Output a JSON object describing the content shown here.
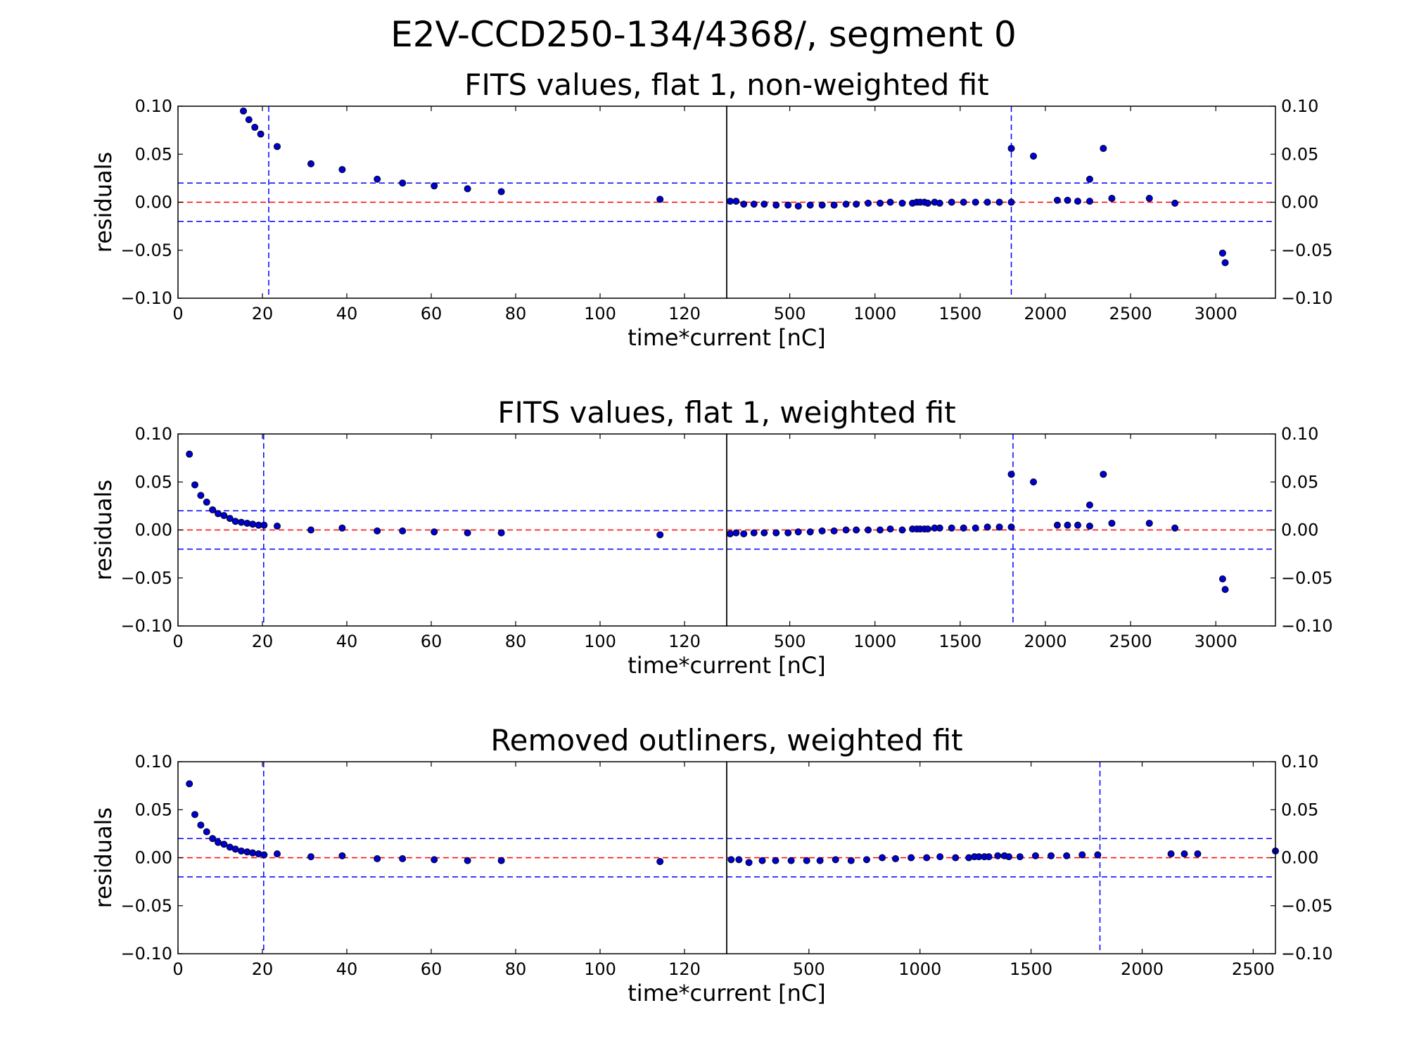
{
  "figure": {
    "suptitle": "E2V-CCD250-134/4368/, segment 0"
  },
  "chart_data": [
    {
      "type": "scatter",
      "title": "FITS values, flat 1, non-weighted fit",
      "xlabel": "time*current [nC]",
      "ylabel": "residuals",
      "ylim": [
        -0.1,
        0.1
      ],
      "yticks": [
        -0.1,
        -0.05,
        0.0,
        0.05,
        0.1
      ],
      "ytick_labels": [
        "−0.10",
        "−0.05",
        "0.00",
        "0.05",
        "0.10"
      ],
      "left_panel": {
        "xlim": [
          0,
          130
        ],
        "xticks": [
          0,
          20,
          40,
          60,
          80,
          100,
          120
        ],
        "xtick_labels": [
          "0",
          "20",
          "40",
          "60",
          "80",
          "100",
          "120"
        ],
        "vline": 21.5,
        "points": [
          [
            15.5,
            0.095
          ],
          [
            16.8,
            0.086
          ],
          [
            18.2,
            0.078
          ],
          [
            19.6,
            0.071
          ],
          [
            23.5,
            0.058
          ],
          [
            31.5,
            0.04
          ],
          [
            38.9,
            0.034
          ],
          [
            47.2,
            0.024
          ],
          [
            53.2,
            0.02
          ],
          [
            60.7,
            0.017
          ],
          [
            68.6,
            0.014
          ],
          [
            76.6,
            0.011
          ],
          [
            114.2,
            0.003
          ]
        ]
      },
      "right_panel": {
        "xlim": [
          130,
          3350
        ],
        "xticks": [
          500,
          1000,
          1500,
          2000,
          2500,
          3000
        ],
        "xtick_labels": [
          "500",
          "1000",
          "1500",
          "2000",
          "2500",
          "3000"
        ],
        "vline": 1800,
        "points": [
          [
            150,
            0.001
          ],
          [
            185,
            0.001
          ],
          [
            230,
            -0.002
          ],
          [
            290,
            -0.002
          ],
          [
            350,
            -0.002
          ],
          [
            420,
            -0.003
          ],
          [
            490,
            -0.003
          ],
          [
            550,
            -0.004
          ],
          [
            620,
            -0.003
          ],
          [
            690,
            -0.003
          ],
          [
            760,
            -0.003
          ],
          [
            830,
            -0.002
          ],
          [
            890,
            -0.002
          ],
          [
            960,
            -0.001
          ],
          [
            1030,
            -0.001
          ],
          [
            1090,
            0.0
          ],
          [
            1160,
            -0.001
          ],
          [
            1220,
            -0.001
          ],
          [
            1245,
            0.0
          ],
          [
            1265,
            0.0
          ],
          [
            1290,
            0.0
          ],
          [
            1310,
            -0.001
          ],
          [
            1350,
            0.0
          ],
          [
            1380,
            -0.001
          ],
          [
            1450,
            0.0
          ],
          [
            1520,
            0.0
          ],
          [
            1590,
            0.0
          ],
          [
            1660,
            0.0
          ],
          [
            1730,
            0.0
          ],
          [
            1800,
            0.0
          ],
          [
            1800,
            0.056
          ],
          [
            1930,
            0.048
          ],
          [
            2070,
            0.002
          ],
          [
            2130,
            0.002
          ],
          [
            2190,
            0.001
          ],
          [
            2260,
            0.001
          ],
          [
            2260,
            0.024
          ],
          [
            2340,
            0.056
          ],
          [
            2390,
            0.004
          ],
          [
            2610,
            0.004
          ],
          [
            2760,
            -0.001
          ],
          [
            3040,
            -0.053
          ],
          [
            3055,
            -0.063
          ]
        ]
      }
    },
    {
      "type": "scatter",
      "title": "FITS values, flat 1, weighted fit",
      "xlabel": "time*current [nC]",
      "ylabel": "residuals",
      "ylim": [
        -0.1,
        0.1
      ],
      "yticks": [
        -0.1,
        -0.05,
        0.0,
        0.05,
        0.1
      ],
      "ytick_labels": [
        "−0.10",
        "−0.05",
        "0.00",
        "0.05",
        "0.10"
      ],
      "left_panel": {
        "xlim": [
          0,
          130
        ],
        "xticks": [
          0,
          20,
          40,
          60,
          80,
          100,
          120
        ],
        "xtick_labels": [
          "0",
          "20",
          "40",
          "60",
          "80",
          "100",
          "120"
        ],
        "vline": 20.3,
        "points": [
          [
            2.7,
            0.079
          ],
          [
            4.0,
            0.047
          ],
          [
            5.4,
            0.036
          ],
          [
            6.8,
            0.029
          ],
          [
            8.2,
            0.021
          ],
          [
            9.5,
            0.017
          ],
          [
            10.9,
            0.015
          ],
          [
            12.3,
            0.012
          ],
          [
            13.6,
            0.009
          ],
          [
            15.0,
            0.008
          ],
          [
            16.4,
            0.007
          ],
          [
            17.7,
            0.006
          ],
          [
            19.1,
            0.005
          ],
          [
            20.4,
            0.005
          ],
          [
            23.5,
            0.004
          ],
          [
            31.5,
            0.0
          ],
          [
            38.9,
            0.002
          ],
          [
            47.2,
            -0.001
          ],
          [
            53.2,
            -0.001
          ],
          [
            60.7,
            -0.002
          ],
          [
            68.6,
            -0.003
          ],
          [
            76.6,
            -0.003
          ],
          [
            114.2,
            -0.005
          ]
        ]
      },
      "right_panel": {
        "xlim": [
          130,
          3350
        ],
        "xticks": [
          500,
          1000,
          1500,
          2000,
          2500,
          3000
        ],
        "xtick_labels": [
          "500",
          "1000",
          "1500",
          "2000",
          "2500",
          "3000"
        ],
        "vline": 1810,
        "points": [
          [
            150,
            -0.004
          ],
          [
            185,
            -0.003
          ],
          [
            230,
            -0.004
          ],
          [
            290,
            -0.003
          ],
          [
            350,
            -0.003
          ],
          [
            420,
            -0.003
          ],
          [
            490,
            -0.003
          ],
          [
            550,
            -0.002
          ],
          [
            620,
            -0.002
          ],
          [
            690,
            -0.001
          ],
          [
            760,
            -0.001
          ],
          [
            830,
            0.0
          ],
          [
            890,
            0.0
          ],
          [
            960,
            0.0
          ],
          [
            1030,
            0.0
          ],
          [
            1090,
            0.001
          ],
          [
            1160,
            0.0
          ],
          [
            1220,
            0.001
          ],
          [
            1245,
            0.001
          ],
          [
            1265,
            0.001
          ],
          [
            1290,
            0.001
          ],
          [
            1310,
            0.001
          ],
          [
            1350,
            0.002
          ],
          [
            1380,
            0.002
          ],
          [
            1450,
            0.002
          ],
          [
            1520,
            0.002
          ],
          [
            1590,
            0.002
          ],
          [
            1660,
            0.003
          ],
          [
            1730,
            0.003
          ],
          [
            1800,
            0.003
          ],
          [
            1800,
            0.058
          ],
          [
            1930,
            0.05
          ],
          [
            2070,
            0.005
          ],
          [
            2130,
            0.005
          ],
          [
            2190,
            0.005
          ],
          [
            2260,
            0.004
          ],
          [
            2260,
            0.026
          ],
          [
            2340,
            0.058
          ],
          [
            2390,
            0.007
          ],
          [
            2610,
            0.007
          ],
          [
            2760,
            0.002
          ],
          [
            3040,
            -0.051
          ],
          [
            3055,
            -0.062
          ]
        ]
      }
    },
    {
      "type": "scatter",
      "title": "Removed outliners, weighted fit",
      "xlabel": "time*current [nC]",
      "ylabel": "residuals",
      "ylim": [
        -0.1,
        0.1
      ],
      "yticks": [
        -0.1,
        -0.05,
        0.0,
        0.05,
        0.1
      ],
      "ytick_labels": [
        "−0.10",
        "−0.05",
        "0.00",
        "0.05",
        "0.10"
      ],
      "left_panel": {
        "xlim": [
          0,
          130
        ],
        "xticks": [
          0,
          20,
          40,
          60,
          80,
          100,
          120
        ],
        "xtick_labels": [
          "0",
          "20",
          "40",
          "60",
          "80",
          "100",
          "120"
        ],
        "vline": 20.3,
        "points": [
          [
            2.7,
            0.077
          ],
          [
            4.0,
            0.045
          ],
          [
            5.4,
            0.034
          ],
          [
            6.8,
            0.027
          ],
          [
            8.2,
            0.02
          ],
          [
            9.5,
            0.016
          ],
          [
            10.9,
            0.014
          ],
          [
            12.3,
            0.011
          ],
          [
            13.6,
            0.009
          ],
          [
            15.0,
            0.007
          ],
          [
            16.4,
            0.006
          ],
          [
            17.7,
            0.005
          ],
          [
            19.1,
            0.004
          ],
          [
            20.4,
            0.003
          ],
          [
            23.5,
            0.004
          ],
          [
            31.5,
            0.001
          ],
          [
            38.9,
            0.002
          ],
          [
            47.2,
            -0.001
          ],
          [
            53.2,
            -0.001
          ],
          [
            60.7,
            -0.002
          ],
          [
            68.6,
            -0.003
          ],
          [
            76.6,
            -0.003
          ],
          [
            114.2,
            -0.004
          ]
        ]
      },
      "right_panel": {
        "xlim": [
          130,
          2600
        ],
        "xticks": [
          500,
          1000,
          1500,
          2000,
          2500
        ],
        "xtick_labels": [
          "500",
          "1000",
          "1500",
          "2000",
          "2500"
        ],
        "vline": 1810,
        "points": [
          [
            150,
            -0.002
          ],
          [
            185,
            -0.002
          ],
          [
            230,
            -0.005
          ],
          [
            290,
            -0.003
          ],
          [
            350,
            -0.003
          ],
          [
            420,
            -0.003
          ],
          [
            490,
            -0.003
          ],
          [
            550,
            -0.003
          ],
          [
            620,
            -0.002
          ],
          [
            690,
            -0.003
          ],
          [
            760,
            -0.002
          ],
          [
            830,
            0.0
          ],
          [
            890,
            -0.001
          ],
          [
            960,
            0.0
          ],
          [
            1030,
            0.0
          ],
          [
            1090,
            0.001
          ],
          [
            1160,
            0.0
          ],
          [
            1220,
            0.0
          ],
          [
            1245,
            0.001
          ],
          [
            1265,
            0.001
          ],
          [
            1290,
            0.001
          ],
          [
            1310,
            0.001
          ],
          [
            1350,
            0.002
          ],
          [
            1380,
            0.002
          ],
          [
            1400,
            0.001
          ],
          [
            1450,
            0.001
          ],
          [
            1520,
            0.002
          ],
          [
            1590,
            0.002
          ],
          [
            1660,
            0.002
          ],
          [
            1730,
            0.003
          ],
          [
            1800,
            0.003
          ],
          [
            2130,
            0.004
          ],
          [
            2190,
            0.004
          ],
          [
            2250,
            0.004
          ],
          [
            2600,
            0.007
          ]
        ]
      }
    }
  ],
  "colors": {
    "marker": "#0000cc",
    "marker_edge": "#000000",
    "zero_line": "#ff0000",
    "band_line": "#0000ff",
    "vline": "#0000ff",
    "axes": "#000000"
  },
  "band": [
    -0.02,
    0.02
  ]
}
